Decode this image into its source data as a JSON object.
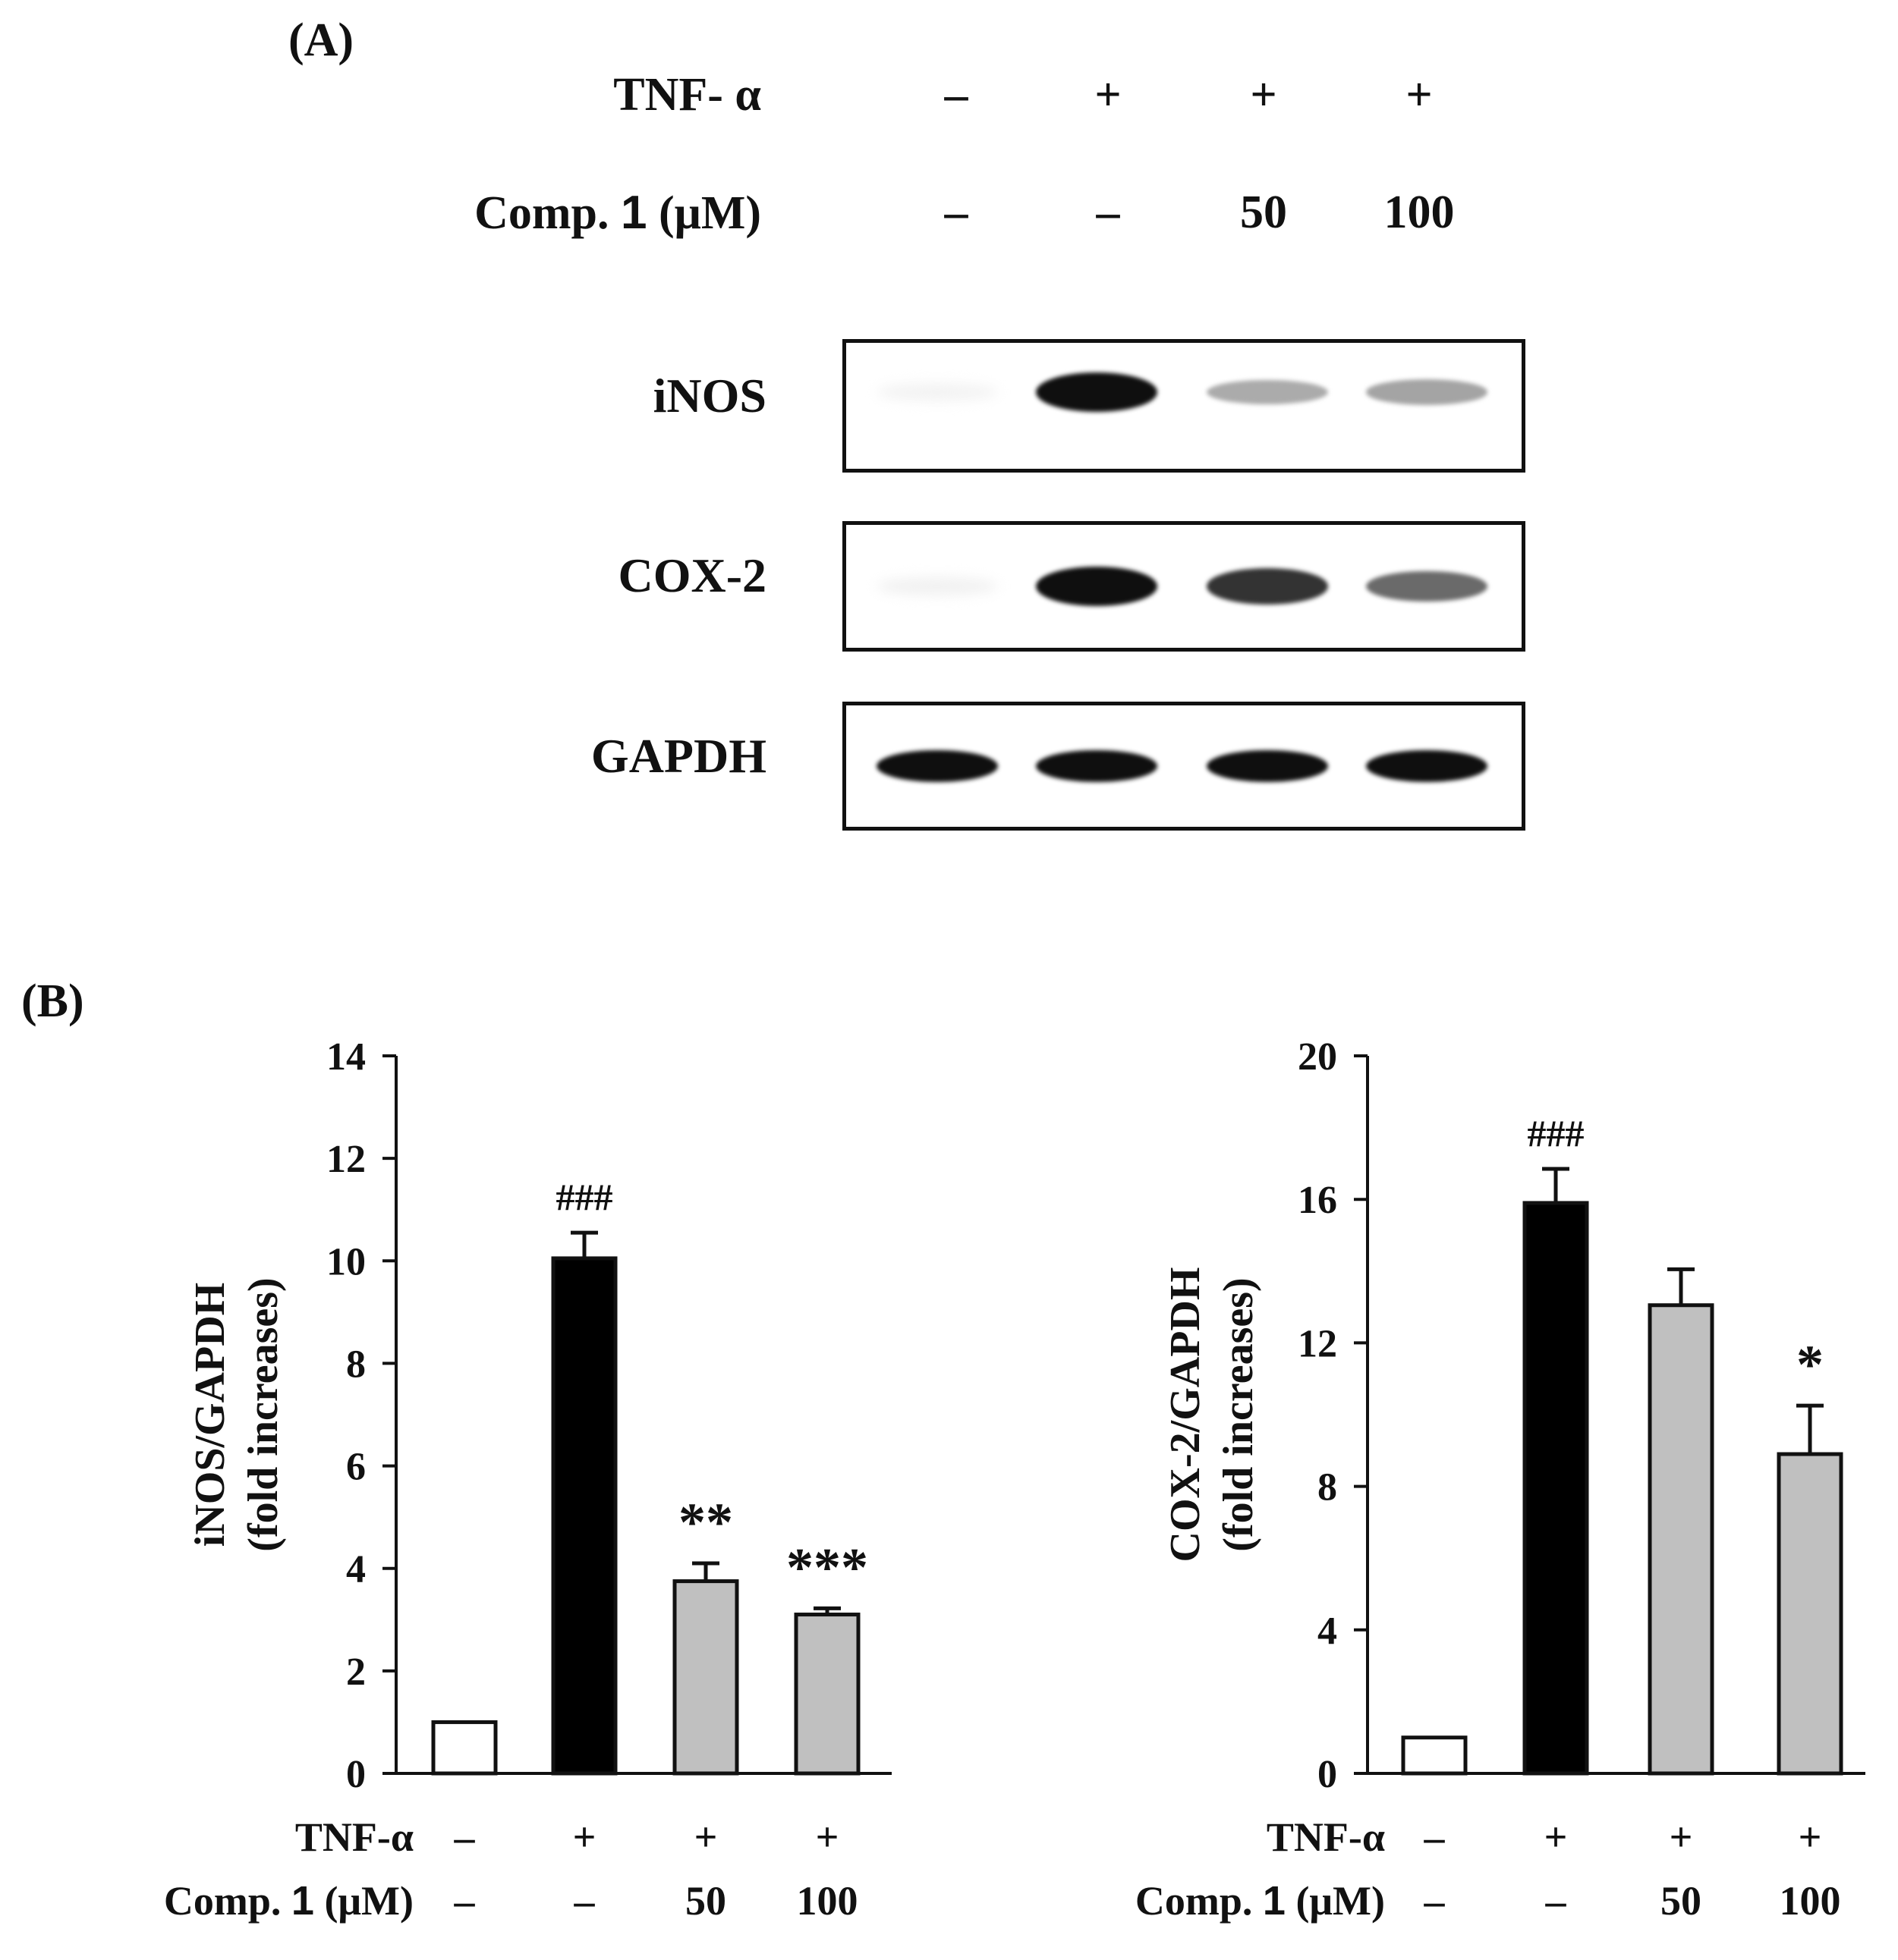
{
  "panel_a": {
    "label": "(A)",
    "row_headers": {
      "tnf": "TNF- α",
      "comp_prefix": "Comp. ",
      "comp_bold": "1",
      "comp_unit": " (μM)"
    },
    "lanes": [
      {
        "tnf": "–",
        "comp": "–"
      },
      {
        "tnf": "+",
        "comp": "–"
      },
      {
        "tnf": "+",
        "comp": "50"
      },
      {
        "tnf": "+",
        "comp": "100"
      }
    ],
    "blots": [
      {
        "name": "iNOS",
        "band_intensity": [
          0.05,
          1.0,
          0.35,
          0.38
        ]
      },
      {
        "name": "COX-2",
        "band_intensity": [
          0.06,
          1.0,
          0.85,
          0.62
        ]
      },
      {
        "name": "GAPDH",
        "band_intensity": [
          1.0,
          1.0,
          1.0,
          1.0
        ]
      }
    ]
  },
  "panel_b": {
    "label": "(B)",
    "x_rows": {
      "tnf_label": "TNF-α",
      "comp_prefix": "Comp. ",
      "comp_bold": "1",
      "comp_unit": " (μM)",
      "tnf_values": [
        "–",
        "+",
        "+",
        "+"
      ],
      "comp_values": [
        "–",
        "–",
        "50",
        "100"
      ]
    }
  },
  "colors": {
    "control": "#ffffff",
    "tnf": "#000000",
    "treated": "#c0c0c0",
    "axis": "#111111"
  },
  "chart_data": [
    {
      "type": "bar",
      "ylabel": "iNOS/GAPDH",
      "ylabel2": "(fold increases)",
      "ylim": [
        0,
        14
      ],
      "yticks": [
        "0",
        "2",
        "4",
        "6",
        "8",
        "10",
        "12",
        "14"
      ],
      "values": [
        1.0,
        10.05,
        3.75,
        3.1
      ],
      "errors": [
        0,
        0.5,
        0.35,
        0.12
      ],
      "annotations": [
        "",
        "###",
        "**",
        "***"
      ],
      "bar_colors": [
        "control",
        "tnf",
        "treated",
        "treated"
      ]
    },
    {
      "type": "bar",
      "ylabel": "COX-2/GAPDH",
      "ylabel2": "(fold increases)",
      "ylim": [
        0,
        20
      ],
      "yticks": [
        "0",
        "4",
        "8",
        "12",
        "16",
        "20"
      ],
      "values": [
        1.0,
        15.9,
        13.05,
        8.9
      ],
      "errors": [
        0,
        0.95,
        1.0,
        1.35
      ],
      "annotations": [
        "",
        "###",
        "",
        "*"
      ],
      "bar_colors": [
        "control",
        "tnf",
        "treated",
        "treated"
      ]
    }
  ]
}
